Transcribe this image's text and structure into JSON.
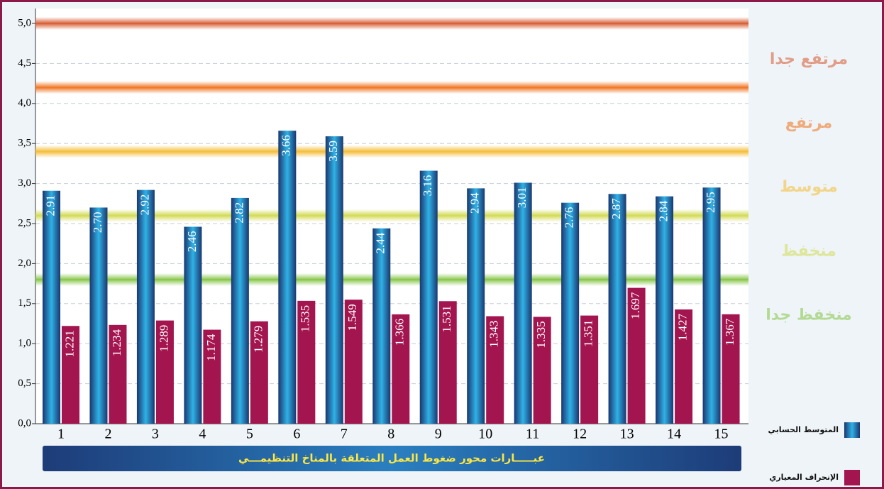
{
  "chart_data": {
    "type": "bar",
    "categories": [
      "1",
      "2",
      "3",
      "4",
      "5",
      "6",
      "7",
      "8",
      "9",
      "10",
      "11",
      "12",
      "13",
      "14",
      "15"
    ],
    "series": [
      {
        "name": "المتوسط الحسابي",
        "color": "#1f4a8c",
        "values": [
          2.91,
          2.7,
          2.92,
          2.46,
          2.82,
          3.66,
          3.59,
          2.44,
          3.16,
          2.94,
          3.01,
          2.76,
          2.87,
          2.84,
          2.95
        ],
        "value_labels": [
          "2.91",
          "2.70",
          "2.92",
          "2.46",
          "2.82",
          "3.66",
          "3.59",
          "2.44",
          "3.16",
          "2.94",
          "3.01",
          "2.76",
          "2.87",
          "2.84",
          "2.95"
        ]
      },
      {
        "name": "الإنحراف المعياري",
        "color": "#a3154f",
        "values": [
          1.221,
          1.234,
          1.289,
          1.174,
          1.279,
          1.535,
          1.549,
          1.366,
          1.531,
          1.343,
          1.335,
          1.351,
          1.697,
          1.427,
          1.367
        ]
      }
    ],
    "ylim": [
      0,
      5
    ],
    "yticks": [
      {
        "value": 0,
        "label": "0,0"
      },
      {
        "value": 0.5,
        "label": "0,5"
      },
      {
        "value": 1,
        "label": "1,0"
      },
      {
        "value": 1.5,
        "label": "1,5"
      },
      {
        "value": 2,
        "label": "2,0"
      },
      {
        "value": 2.5,
        "label": "2,5"
      },
      {
        "value": 3,
        "label": "3,0"
      },
      {
        "value": 3.5,
        "label": "3,5"
      },
      {
        "value": 4,
        "label": "4,0"
      },
      {
        "value": 4.5,
        "label": "4,5"
      },
      {
        "value": 5,
        "label": "5,0"
      }
    ],
    "grid": true,
    "levels": [
      {
        "label": "مرتفع جدا",
        "value": 5.0,
        "color": "#d9623a"
      },
      {
        "label": "مرتفع",
        "value": 4.2,
        "color": "#f07a2a"
      },
      {
        "label": "متوسط",
        "value": 3.4,
        "color": "#f5c040"
      },
      {
        "label": "منخفظ",
        "value": 2.6,
        "color": "#d4dc5a"
      },
      {
        "label": "منخفظ جدا",
        "value": 1.8,
        "color": "#8cc850"
      }
    ],
    "x_label": "عبـــــارات محور ضغوط العمل المتعلقة بالمناخ التنظيمـــي"
  }
}
